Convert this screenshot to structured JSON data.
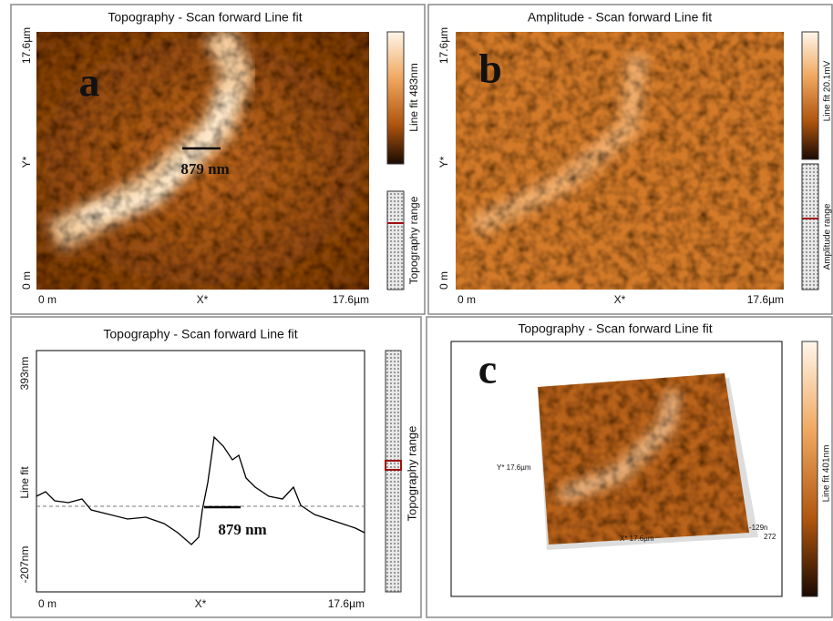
{
  "panel_a": {
    "title": "Topography - Scan forward   Line fit",
    "label": "a",
    "y_top": "17.6µm",
    "y_mid": "Y*",
    "y_bottom": "0 m",
    "x_left": "0 m",
    "x_mid": "X*",
    "x_right": "17.6µm",
    "annotation": "879 nm",
    "colorbar_label": "Line fit 483nm",
    "range_label": "Topography range"
  },
  "panel_b": {
    "title": "Amplitude - Scan forward   Line fit",
    "label": "b",
    "y_top": "17.6µm",
    "y_mid": "Y*",
    "y_bottom": "0 m",
    "x_left": "0 m",
    "x_mid": "X*",
    "x_right": "17.6µm",
    "colorbar_label": "Line fit 20.1mV",
    "range_label": "Amplitude range"
  },
  "profile": {
    "title": "Topography - Scan forward   Line fit",
    "y_top": "393nm",
    "y_mid": "Line fit",
    "y_bottom": "-207nm",
    "x_left": "0 m",
    "x_mid": "X*",
    "x_right": "17.6µm",
    "annotation": "879 nm",
    "range_label": "Topography range"
  },
  "panel_c": {
    "title": "Topography - Scan forward   Line fit",
    "label": "c",
    "y_axis": "Y* 17.6µm",
    "x_axis": "X* 17.6µm",
    "z_low": "-129n",
    "z_high": "272",
    "colorbar_label": "Line fit 401nm"
  }
}
